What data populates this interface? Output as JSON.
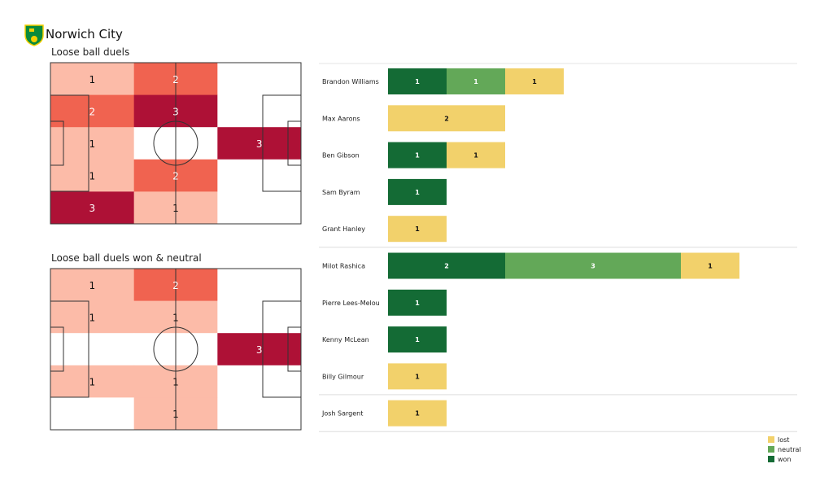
{
  "header": {
    "team": "Norwich City",
    "logo_icon": "norwich-city-crest"
  },
  "chart_data": [
    {
      "type": "heatmap",
      "title": "Loose ball duels",
      "rows": 5,
      "cols": 3,
      "values": [
        [
          1,
          2,
          0
        ],
        [
          2,
          3,
          0
        ],
        [
          1,
          0,
          3
        ],
        [
          1,
          2,
          0
        ],
        [
          3,
          1,
          0
        ]
      ],
      "colors": {
        "0": "#ffffff",
        "1": "#fcbba8",
        "2": "#f06350",
        "3": "#ae1136"
      }
    },
    {
      "type": "heatmap",
      "title": "Loose ball duels won & neutral",
      "rows": 5,
      "cols": 3,
      "values": [
        [
          1,
          2,
          0
        ],
        [
          1,
          1,
          0
        ],
        [
          0,
          0,
          3
        ],
        [
          1,
          1,
          0
        ],
        [
          0,
          1,
          0
        ]
      ],
      "colors": {
        "0": "#ffffff",
        "1": "#fcbba8",
        "2": "#f06350",
        "3": "#ae1136"
      }
    },
    {
      "type": "bar",
      "orientation": "horizontal",
      "stacked": true,
      "categories": [
        "Brandon Williams",
        "Max Aarons",
        "Ben Gibson",
        "Sam Byram",
        "Grant Hanley",
        "Milot Rashica",
        "Pierre Lees-Melou",
        "Kenny McLean",
        "Billy Gilmour",
        "Josh Sargent"
      ],
      "series": [
        {
          "name": "won",
          "color": "#146b35",
          "values": [
            1,
            0,
            1,
            1,
            0,
            2,
            1,
            1,
            0,
            0
          ]
        },
        {
          "name": "neutral",
          "color": "#63a858",
          "values": [
            1,
            0,
            0,
            0,
            0,
            3,
            0,
            0,
            0,
            0
          ]
        },
        {
          "name": "lost",
          "color": "#f2d16b",
          "values": [
            1,
            2,
            1,
            0,
            1,
            1,
            0,
            0,
            1,
            1
          ]
        }
      ],
      "legend": [
        "lost",
        "neutral",
        "won"
      ],
      "legend_position": "bottom-right",
      "group_separators_after": [
        "Grant Hanley",
        "Billy Gilmour"
      ]
    }
  ]
}
